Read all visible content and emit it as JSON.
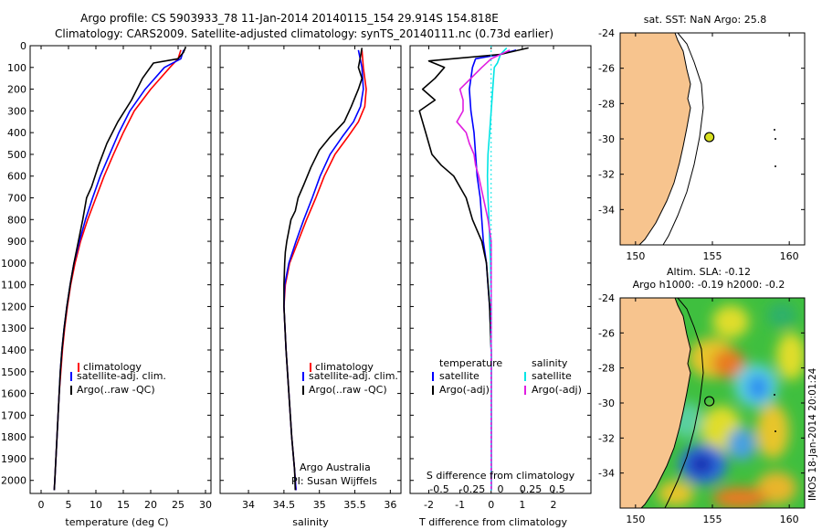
{
  "header": {
    "line1": "Argo profile: CS 5903933_78 11-Jan-2014 20140115_154 29.914S 154.818E",
    "line2": "Climatology: CARS2009. Satellite-adjusted climatology: synTS_20140111.nc (0.73d earlier)"
  },
  "colors": {
    "climatology": "#ff0000",
    "satellite": "#0000ff",
    "argo": "#000000",
    "salinity_satellite": "#00e5e5",
    "salinity_argo": "#e01ee0",
    "land": "#f7c48e"
  },
  "chart_data": [
    {
      "id": "temperature",
      "type": "line",
      "xlabel": "temperature (deg C)",
      "xlim": [
        -2,
        31
      ],
      "xticks": [
        0,
        5,
        10,
        15,
        20,
        25,
        30
      ],
      "ylim": [
        0,
        2060
      ],
      "yticks": [
        0,
        100,
        200,
        300,
        400,
        500,
        600,
        700,
        800,
        900,
        1000,
        1100,
        1200,
        1300,
        1400,
        1500,
        1600,
        1700,
        1800,
        1900,
        2000
      ],
      "legend": [
        "climatology",
        "satellite-adj. clim.",
        "Argo(..raw -QC)"
      ],
      "series": [
        {
          "name": "climatology",
          "points": [
            [
              25.5,
              20
            ],
            [
              25,
              60
            ],
            [
              23.5,
              100
            ],
            [
              20,
              200
            ],
            [
              17,
              300
            ],
            [
              15,
              400
            ],
            [
              13.2,
              500
            ],
            [
              11.5,
              600
            ],
            [
              10,
              700
            ],
            [
              8.5,
              800
            ],
            [
              7.2,
              900
            ],
            [
              6.2,
              1000
            ],
            [
              5.4,
              1100
            ],
            [
              4.8,
              1200
            ],
            [
              4.3,
              1300
            ],
            [
              3.9,
              1400
            ],
            [
              3.6,
              1500
            ],
            [
              3.3,
              1600
            ],
            [
              3.1,
              1700
            ],
            [
              2.9,
              1800
            ],
            [
              2.7,
              1900
            ],
            [
              2.5,
              2000
            ],
            [
              2.4,
              2045
            ]
          ]
        },
        {
          "name": "satellite-adj. clim.",
          "points": [
            [
              26,
              20
            ],
            [
              25.5,
              60
            ],
            [
              22.5,
              100
            ],
            [
              19,
              200
            ],
            [
              16.2,
              300
            ],
            [
              14.2,
              400
            ],
            [
              12.5,
              500
            ],
            [
              10.8,
              600
            ],
            [
              9.4,
              700
            ],
            [
              8.1,
              800
            ],
            [
              7,
              900
            ],
            [
              6,
              1000
            ],
            [
              5.3,
              1100
            ],
            [
              4.7,
              1200
            ],
            [
              4.2,
              1300
            ],
            [
              3.8,
              1400
            ],
            [
              3.5,
              1500
            ],
            [
              3.3,
              1600
            ],
            [
              3.1,
              1700
            ],
            [
              2.9,
              1800
            ],
            [
              2.7,
              1900
            ],
            [
              2.5,
              2000
            ],
            [
              2.4,
              2045
            ]
          ]
        },
        {
          "name": "Argo(..raw -QC)",
          "points": [
            [
              26.4,
              5
            ],
            [
              26,
              30
            ],
            [
              25,
              60
            ],
            [
              20.5,
              80
            ],
            [
              18.5,
              150
            ],
            [
              16.5,
              250
            ],
            [
              14,
              350
            ],
            [
              12,
              450
            ],
            [
              10.5,
              550
            ],
            [
              9.2,
              650
            ],
            [
              8.3,
              700
            ],
            [
              7.6,
              800
            ],
            [
              6.8,
              900
            ],
            [
              6,
              1000
            ],
            [
              5.3,
              1100
            ],
            [
              4.7,
              1200
            ],
            [
              4.2,
              1300
            ],
            [
              3.8,
              1400
            ],
            [
              3.5,
              1500
            ],
            [
              3.3,
              1600
            ],
            [
              3.1,
              1700
            ],
            [
              2.9,
              1800
            ],
            [
              2.7,
              1900
            ],
            [
              2.5,
              2000
            ],
            [
              2.4,
              2045
            ]
          ]
        }
      ]
    },
    {
      "id": "salinity",
      "type": "line",
      "xlabel": "salinity",
      "xlim": [
        33.6,
        36.15
      ],
      "xticks": [
        34,
        34.5,
        35,
        35.5,
        36
      ],
      "ylim": [
        0,
        2060
      ],
      "legend": [
        "climatology",
        "satellite-adj. clim.",
        "Argo(..raw -QC)"
      ],
      "annotation": [
        "Argo Australia",
        "PI: Susan Wijffels"
      ],
      "series": [
        {
          "name": "climatology",
          "points": [
            [
              35.6,
              20
            ],
            [
              35.62,
              100
            ],
            [
              35.66,
              200
            ],
            [
              35.64,
              280
            ],
            [
              35.55,
              350
            ],
            [
              35.4,
              420
            ],
            [
              35.22,
              500
            ],
            [
              35.07,
              600
            ],
            [
              34.95,
              700
            ],
            [
              34.82,
              800
            ],
            [
              34.7,
              900
            ],
            [
              34.58,
              1000
            ],
            [
              34.52,
              1100
            ],
            [
              34.5,
              1200
            ],
            [
              34.53,
              1400
            ],
            [
              34.57,
              1600
            ],
            [
              34.61,
              1800
            ],
            [
              34.65,
              1950
            ],
            [
              34.67,
              2045
            ]
          ]
        },
        {
          "name": "satellite-adj. clim.",
          "points": [
            [
              35.55,
              20
            ],
            [
              35.6,
              100
            ],
            [
              35.62,
              200
            ],
            [
              35.58,
              280
            ],
            [
              35.48,
              350
            ],
            [
              35.32,
              420
            ],
            [
              35.15,
              500
            ],
            [
              35.01,
              600
            ],
            [
              34.9,
              700
            ],
            [
              34.78,
              800
            ],
            [
              34.67,
              900
            ],
            [
              34.57,
              1000
            ],
            [
              34.51,
              1100
            ],
            [
              34.5,
              1200
            ],
            [
              34.53,
              1400
            ],
            [
              34.57,
              1600
            ],
            [
              34.61,
              1800
            ],
            [
              34.65,
              1950
            ],
            [
              34.67,
              2045
            ]
          ]
        },
        {
          "name": "Argo(..raw -QC)",
          "points": [
            [
              35.6,
              10
            ],
            [
              35.58,
              50
            ],
            [
              35.55,
              100
            ],
            [
              35.6,
              150
            ],
            [
              35.55,
              200
            ],
            [
              35.45,
              280
            ],
            [
              35.35,
              350
            ],
            [
              35.15,
              420
            ],
            [
              35,
              480
            ],
            [
              34.88,
              560
            ],
            [
              34.78,
              640
            ],
            [
              34.7,
              700
            ],
            [
              34.66,
              760
            ],
            [
              34.6,
              800
            ],
            [
              34.57,
              850
            ],
            [
              34.54,
              900
            ],
            [
              34.52,
              950
            ],
            [
              34.51,
              1000
            ],
            [
              34.5,
              1100
            ],
            [
              34.5,
              1200
            ],
            [
              34.53,
              1400
            ],
            [
              34.57,
              1600
            ],
            [
              34.61,
              1800
            ],
            [
              34.65,
              1950
            ],
            [
              34.66,
              2045
            ]
          ]
        }
      ]
    },
    {
      "id": "difference",
      "type": "line",
      "xlabel": "T difference from climatology",
      "top_axis_label": "S difference from climatology",
      "xlim": [
        -2.6,
        3.2
      ],
      "xticks": [
        -2,
        -1,
        0,
        1,
        2
      ],
      "top_ticks": [
        "-0.5",
        "-0.25",
        "0",
        "0.25",
        "0.5"
      ],
      "legend_titles": [
        "temperature",
        "salinity"
      ],
      "legend": [
        "satellite",
        "Argo(-adj)",
        "satellite",
        "Argo(-adj)"
      ],
      "series": [
        {
          "name": "temperature satellite",
          "points": [
            [
              0.8,
              20
            ],
            [
              0.3,
              40
            ],
            [
              -0.5,
              60
            ],
            [
              -0.6,
              100
            ],
            [
              -0.7,
              200
            ],
            [
              -0.65,
              300
            ],
            [
              -0.55,
              400
            ],
            [
              -0.5,
              500
            ],
            [
              -0.45,
              600
            ],
            [
              -0.35,
              700
            ],
            [
              -0.3,
              800
            ],
            [
              -0.25,
              900
            ],
            [
              -0.15,
              1000
            ],
            [
              -0.1,
              1100
            ],
            [
              -0.05,
              1200
            ],
            [
              0,
              1400
            ],
            [
              0,
              2045
            ]
          ]
        },
        {
          "name": "temperature Argo(-adj)",
          "points": [
            [
              1.2,
              10
            ],
            [
              0.6,
              30
            ],
            [
              0.3,
              40
            ],
            [
              -2,
              70
            ],
            [
              -1.5,
              100
            ],
            [
              -1.8,
              150
            ],
            [
              -2.2,
              200
            ],
            [
              -1.8,
              250
            ],
            [
              -2.3,
              300
            ],
            [
              -2.1,
              400
            ],
            [
              -1.9,
              500
            ],
            [
              -1.6,
              550
            ],
            [
              -1.2,
              600
            ],
            [
              -1,
              650
            ],
            [
              -0.8,
              700
            ],
            [
              -0.6,
              800
            ],
            [
              -0.45,
              850
            ],
            [
              -0.3,
              900
            ],
            [
              -0.15,
              1000
            ],
            [
              -0.05,
              1200
            ],
            [
              0,
              1400
            ],
            [
              0,
              2045
            ]
          ]
        },
        {
          "name": "salinity satellite",
          "points": [
            [
              0.5,
              10
            ],
            [
              0.3,
              40
            ],
            [
              0.2,
              80
            ],
            [
              0.1,
              100
            ],
            [
              0.05,
              200
            ],
            [
              0,
              300
            ],
            [
              -0.05,
              400
            ],
            [
              -0.1,
              500
            ],
            [
              -0.12,
              600
            ],
            [
              -0.1,
              700
            ],
            [
              -0.07,
              800
            ],
            [
              -0.05,
              900
            ],
            [
              -0.02,
              1000
            ],
            [
              0,
              1200
            ],
            [
              0,
              2045
            ]
          ]
        },
        {
          "name": "salinity Argo(-adj)",
          "points": [
            [
              0.6,
              20
            ],
            [
              0,
              60
            ],
            [
              -0.3,
              100
            ],
            [
              -1,
              200
            ],
            [
              -0.9,
              250
            ],
            [
              -0.9,
              300
            ],
            [
              -1.1,
              350
            ],
            [
              -0.8,
              400
            ],
            [
              -0.7,
              450
            ],
            [
              -0.55,
              500
            ],
            [
              -0.5,
              550
            ],
            [
              -0.4,
              600
            ],
            [
              -0.25,
              700
            ],
            [
              -0.1,
              800
            ],
            [
              -0.05,
              850
            ],
            [
              0,
              900
            ],
            [
              0,
              2045
            ]
          ]
        }
      ]
    },
    {
      "id": "sst-map",
      "type": "scatter",
      "title": "sat. SST: NaN Argo: 25.8",
      "xlim": [
        149,
        161
      ],
      "ylim": [
        -36,
        -24
      ],
      "xticks": [
        150,
        155,
        160
      ],
      "yticks": [
        -24,
        -26,
        -28,
        -30,
        -32,
        -34
      ],
      "points": [
        [
          154.8,
          -29.9
        ]
      ]
    },
    {
      "id": "sla-map",
      "type": "heatmap",
      "title_line1": "Altim. SLA: -0.12",
      "title_line2": "Argo h1000: -0.19 h2000: -0.2",
      "xlim": [
        149,
        161
      ],
      "ylim": [
        -36,
        -24
      ],
      "xticks": [
        150,
        155,
        160
      ],
      "yticks": [
        -24,
        -26,
        -28,
        -30,
        -32,
        -34
      ],
      "points": [
        [
          154.8,
          -29.9
        ]
      ]
    }
  ],
  "watermark": "IMOS 18-Jan-2014 20:01:24"
}
